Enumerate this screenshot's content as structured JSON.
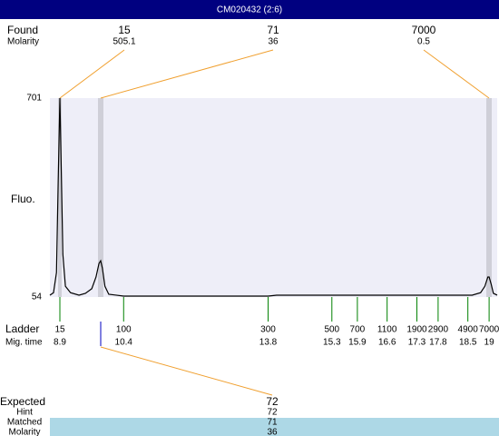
{
  "title": "CM020432 (2:6)",
  "found": {
    "label": "Found",
    "molarity_label": "Molarity",
    "peaks": [
      {
        "size": 15,
        "molarity": 505.1
      },
      {
        "size": 71,
        "molarity": 36
      },
      {
        "size": 7000,
        "molarity": 0.5
      }
    ]
  },
  "chart_data": {
    "type": "line",
    "y_label": "Fluo.",
    "color": "#000000",
    "x": [
      8.665,
      8.75,
      8.82,
      8.86,
      8.9,
      8.93,
      8.97,
      9.03,
      9.15,
      9.35,
      9.5,
      9.65,
      9.75,
      9.82,
      9.86,
      9.9,
      9.96,
      10.05,
      10.4,
      13.8,
      14.0,
      18.6,
      18.8,
      18.9,
      18.97,
      19.0,
      19.05,
      19.1,
      19.19
    ],
    "values": [
      60,
      68,
      134,
      429,
      701,
      488,
      193,
      89,
      68,
      60,
      66,
      81,
      119,
      163,
      172,
      148,
      89,
      63,
      57,
      57,
      60,
      60,
      68,
      89,
      119,
      119,
      95,
      66,
      60
    ],
    "xlim": [
      8.665,
      19.19
    ],
    "ylim": [
      54,
      701
    ],
    "yticks": [
      54,
      701
    ]
  },
  "ladder": {
    "label": "Ladder",
    "time_label": "Mig. time",
    "sizes": [
      15,
      100,
      300,
      500,
      700,
      1100,
      1900,
      2900,
      4900,
      7000
    ],
    "times": [
      8.9,
      10.4,
      13.8,
      15.3,
      15.9,
      16.6,
      17.3,
      17.8,
      18.5,
      19
    ]
  },
  "expected": {
    "label": "Expected",
    "value": 72,
    "hint_label": "Hint",
    "hint": 72,
    "matched_label": "Matched",
    "matched": 71,
    "molarity_label": "Molarity",
    "molarity": 36
  }
}
